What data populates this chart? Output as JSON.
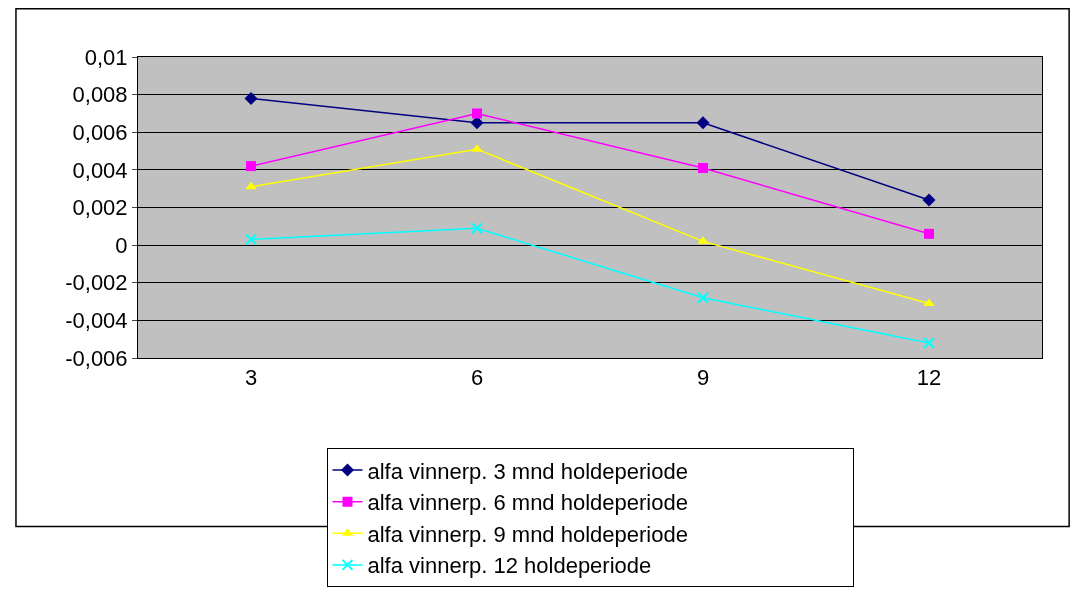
{
  "chart_data": {
    "type": "line",
    "categories": [
      "3",
      "6",
      "9",
      "12"
    ],
    "series": [
      {
        "name": "alfa vinnerp. 3 mnd holdeperiode",
        "color": "#000080",
        "marker": "diamond",
        "values": [
          0.0078,
          0.0065,
          0.0065,
          0.0024
        ]
      },
      {
        "name": "alfa vinnerp. 6 mnd holdeperiode",
        "color": "#ff00ff",
        "marker": "square",
        "values": [
          0.0042,
          0.007,
          0.0041,
          0.0006
        ]
      },
      {
        "name": "alfa vinnerp. 9 mnd holdeperiode",
        "color": "#ffff00",
        "marker": "triangle",
        "values": [
          0.0031,
          0.0051,
          0.0002,
          -0.0031
        ]
      },
      {
        "name": "alfa vinnerp. 12 holdeperiode",
        "color": "#00ffff",
        "marker": "cross",
        "values": [
          0.0003,
          0.0009,
          -0.0028,
          -0.0052
        ]
      }
    ],
    "ylim": [
      -0.006,
      0.01
    ],
    "yticks": [
      {
        "value": -0.006,
        "label": "-0,006"
      },
      {
        "value": -0.004,
        "label": "-0,004"
      },
      {
        "value": -0.002,
        "label": "-0,002"
      },
      {
        "value": 0,
        "label": "0"
      },
      {
        "value": 0.002,
        "label": "0,002"
      },
      {
        "value": 0.004,
        "label": "0,004"
      },
      {
        "value": 0.006,
        "label": "0,006"
      },
      {
        "value": 0.008,
        "label": "0,008"
      },
      {
        "value": 0.01,
        "label": "0,01"
      }
    ],
    "grid": "y",
    "legend": "bottom"
  }
}
